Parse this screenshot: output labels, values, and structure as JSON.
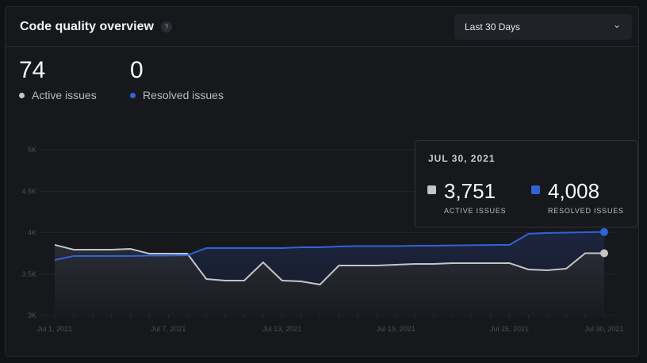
{
  "header": {
    "title": "Code quality overview",
    "help_icon": "question-icon",
    "range": "Last 30 Days"
  },
  "stats": [
    {
      "value": "74",
      "label": "Active issues",
      "color": "#c4c5c9"
    },
    {
      "value": "0",
      "label": "Resolved issues",
      "color": "#2f63d8"
    }
  ],
  "tooltip": {
    "date": "JUL 30, 2021",
    "items": [
      {
        "value": "3,751",
        "label": "ACTIVE ISSUES",
        "color": "#c4c5c9"
      },
      {
        "value": "4,008",
        "label": "RESOLVED ISSUES",
        "color": "#2f63d8"
      }
    ]
  },
  "chart_data": {
    "type": "area",
    "ylim": [
      3000,
      5000
    ],
    "yticks": [
      "5K",
      "4.5K",
      "4K",
      "3.5K",
      "3K"
    ],
    "ytick_values": [
      5000,
      4500,
      4000,
      3500,
      3000
    ],
    "x": [
      "Jul 1",
      "Jul 2",
      "Jul 3",
      "Jul 4",
      "Jul 5",
      "Jul 6",
      "Jul 7",
      "Jul 8",
      "Jul 9",
      "Jul 10",
      "Jul 11",
      "Jul 12",
      "Jul 13",
      "Jul 14",
      "Jul 15",
      "Jul 16",
      "Jul 17",
      "Jul 18",
      "Jul 19",
      "Jul 20",
      "Jul 21",
      "Jul 22",
      "Jul 23",
      "Jul 24",
      "Jul 25",
      "Jul 26",
      "Jul 27",
      "Jul 28",
      "Jul 29",
      "Jul 30"
    ],
    "xticks": [
      {
        "index": 0,
        "label": "Jul 1, 2021"
      },
      {
        "index": 6,
        "label": "Jul 7, 2021"
      },
      {
        "index": 12,
        "label": "Jul 13, 2021"
      },
      {
        "index": 18,
        "label": "Jul 19, 2021"
      },
      {
        "index": 24,
        "label": "Jul 25, 2021"
      },
      {
        "index": 29,
        "label": "Jul 30, 2021"
      }
    ],
    "grid": true,
    "series": [
      {
        "name": "Active issues",
        "color": "#c4c5c9",
        "values": [
          3852,
          3794,
          3794,
          3794,
          3804,
          3746,
          3746,
          3746,
          3440,
          3421,
          3421,
          3641,
          3421,
          3411,
          3373,
          3603,
          3603,
          3603,
          3612,
          3622,
          3622,
          3632,
          3632,
          3632,
          3632,
          3555,
          3545,
          3565,
          3751,
          3751
        ]
      },
      {
        "name": "Resolved issues",
        "color": "#2f63d8",
        "values": [
          3670,
          3718,
          3718,
          3718,
          3718,
          3722,
          3722,
          3727,
          3813,
          3813,
          3813,
          3813,
          3813,
          3823,
          3823,
          3833,
          3837,
          3837,
          3837,
          3842,
          3842,
          3846,
          3848,
          3850,
          3852,
          3986,
          3996,
          4000,
          4005,
          4008
        ]
      }
    ]
  }
}
